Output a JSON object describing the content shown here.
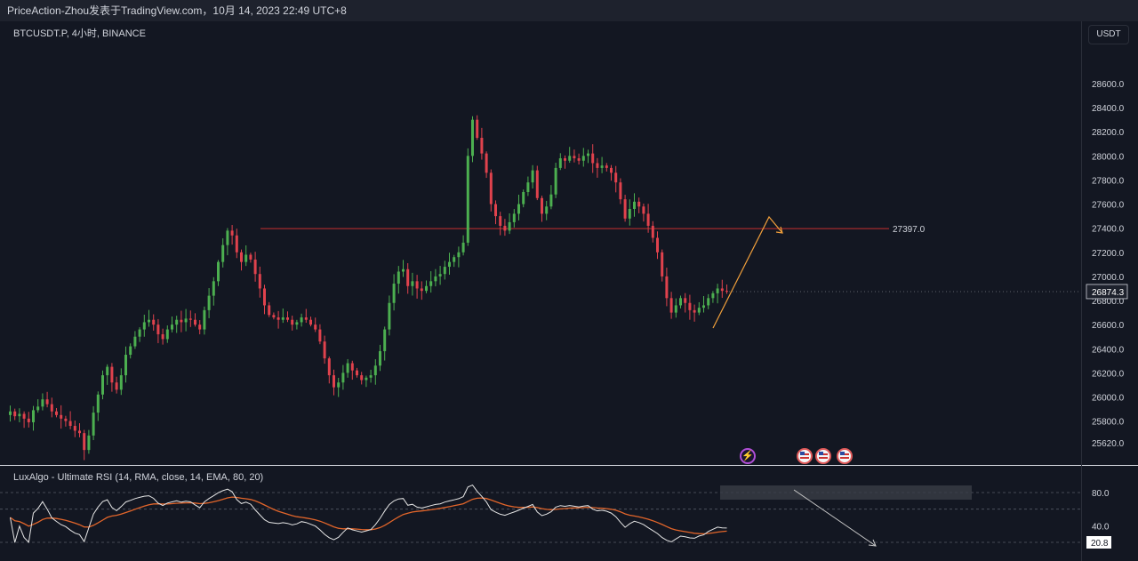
{
  "header": {
    "publish_line": "PriceAction-Zhou发表于TradingView.com，10月 14, 2023 22:49 UTC+8",
    "symbol_line": "BTCUSDT.P, 4小时, BINANCE",
    "currency_button": "USDT"
  },
  "chart_data": [
    {
      "type": "candlestick",
      "title": "",
      "ylabel": "",
      "y_ticks": [
        25620,
        25800,
        26000,
        26200,
        26400,
        26600,
        26800,
        27000,
        27200,
        27400,
        27600,
        27800,
        28000,
        28200,
        28400,
        28600
      ],
      "y_tick_labels": [
        "25620.0",
        "25800.0",
        "26000.0",
        "26200.0",
        "26400.0",
        "26600.0",
        "26800.0",
        "27000.0",
        "27200.0",
        "27400.0",
        "27600.0",
        "27800.0",
        "28000.0",
        "28200.0",
        "28400.0",
        "28600.0"
      ],
      "ylim": [
        25450,
        28800
      ],
      "current_price": 26874.3,
      "current_price_label": "26874.3",
      "resistance_level": 27397.0,
      "resistance_label": "27397.0",
      "colors": {
        "up": "#4caf50",
        "down": "#e0424d",
        "resistance": "#c62f2f",
        "projection": "#f2a03b",
        "background": "#131722"
      },
      "closes": [
        25880,
        25840,
        25860,
        25820,
        25790,
        25890,
        25920,
        25980,
        25940,
        25880,
        25850,
        25820,
        25800,
        25760,
        25720,
        25700,
        25560,
        25680,
        25870,
        26020,
        26180,
        26250,
        26120,
        26060,
        26180,
        26350,
        26420,
        26500,
        26560,
        26620,
        26640,
        26600,
        26520,
        26480,
        26560,
        26600,
        26640,
        26620,
        26650,
        26640,
        26600,
        26560,
        26720,
        26840,
        26960,
        27120,
        27260,
        27380,
        27340,
        27200,
        27120,
        27180,
        27140,
        27020,
        26900,
        26760,
        26680,
        26660,
        26640,
        26660,
        26640,
        26600,
        26620,
        26660,
        26640,
        26600,
        26560,
        26460,
        26320,
        26180,
        26080,
        26120,
        26200,
        26280,
        26220,
        26180,
        26140,
        26160,
        26180,
        26260,
        26380,
        26560,
        26780,
        26940,
        27040,
        27060,
        26920,
        26960,
        26900,
        26880,
        26920,
        26960,
        27000,
        27020,
        27080,
        27120,
        27160,
        27200,
        27280,
        28000,
        28300,
        28150,
        28020,
        27860,
        27600,
        27500,
        27420,
        27380,
        27450,
        27520,
        27600,
        27700,
        27780,
        27880,
        27650,
        27520,
        27580,
        27680,
        27900,
        27980,
        27960,
        28000,
        27980,
        27960,
        28000,
        28020,
        27940,
        27900,
        27920,
        27900,
        27860,
        27780,
        27640,
        27480,
        27560,
        27620,
        27580,
        27520,
        27420,
        27320,
        27200,
        27000,
        26820,
        26700,
        26760,
        26820,
        26780,
        26720,
        26700,
        26740,
        26760,
        26820,
        26860,
        26900,
        26880,
        26874
      ],
      "rsi": {
        "title": "LuxAlgo - Ultimate RSI (14, RMA, close, 14, EMA, 80, 20)",
        "levels": [
          80,
          40,
          20
        ],
        "level_labels": [
          "80.0",
          "40.0"
        ],
        "current_value": 20.8,
        "current_label": "20.8",
        "colors": {
          "rsi": "#e6e6e6",
          "signal": "#e2652a",
          "overbought_fill": "#26a69a",
          "oversold_fill": "#b2283a"
        }
      },
      "annotations": {
        "event_icons": [
          "lightning-icon",
          "us-flag-icon",
          "us-flag-icon",
          "us-flag-icon"
        ]
      }
    }
  ]
}
